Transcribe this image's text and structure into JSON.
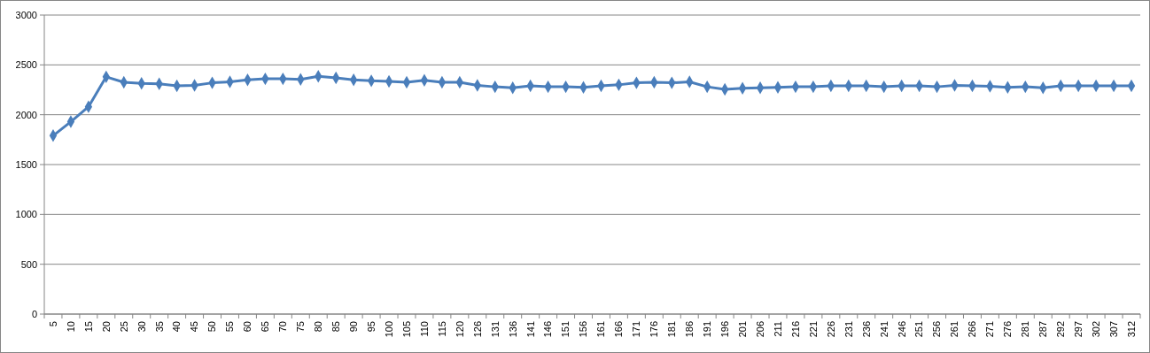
{
  "chart_data": {
    "type": "line",
    "categories": [
      "5",
      "10",
      "15",
      "20",
      "25",
      "30",
      "35",
      "40",
      "45",
      "50",
      "55",
      "60",
      "65",
      "70",
      "75",
      "80",
      "85",
      "90",
      "95",
      "100",
      "105",
      "110",
      "115",
      "120",
      "126",
      "131",
      "136",
      "141",
      "146",
      "151",
      "156",
      "161",
      "166",
      "171",
      "176",
      "181",
      "186",
      "191",
      "196",
      "201",
      "206",
      "211",
      "216",
      "221",
      "226",
      "231",
      "236",
      "241",
      "246",
      "251",
      "256",
      "261",
      "266",
      "271",
      "276",
      "281",
      "287",
      "292",
      "297",
      "302",
      "307",
      "312"
    ],
    "series": [
      {
        "color": "#4a7ebb",
        "values": [
          1790,
          1930,
          2080,
          2380,
          2325,
          2315,
          2310,
          2290,
          2295,
          2320,
          2330,
          2350,
          2360,
          2360,
          2355,
          2385,
          2370,
          2350,
          2340,
          2335,
          2325,
          2345,
          2325,
          2325,
          2295,
          2280,
          2270,
          2290,
          2280,
          2280,
          2275,
          2290,
          2300,
          2320,
          2325,
          2320,
          2330,
          2280,
          2255,
          2265,
          2270,
          2275,
          2280,
          2280,
          2290,
          2290,
          2290,
          2280,
          2290,
          2290,
          2280,
          2295,
          2290,
          2285,
          2275,
          2280,
          2270,
          2290,
          2290,
          2290,
          2290,
          2290
        ]
      }
    ],
    "ylim": [
      0,
      3000
    ],
    "yticks": [
      0,
      500,
      1000,
      1500,
      2000,
      2500,
      3000
    ],
    "grid": "y",
    "marker": "diamond",
    "line_style": "solid"
  }
}
